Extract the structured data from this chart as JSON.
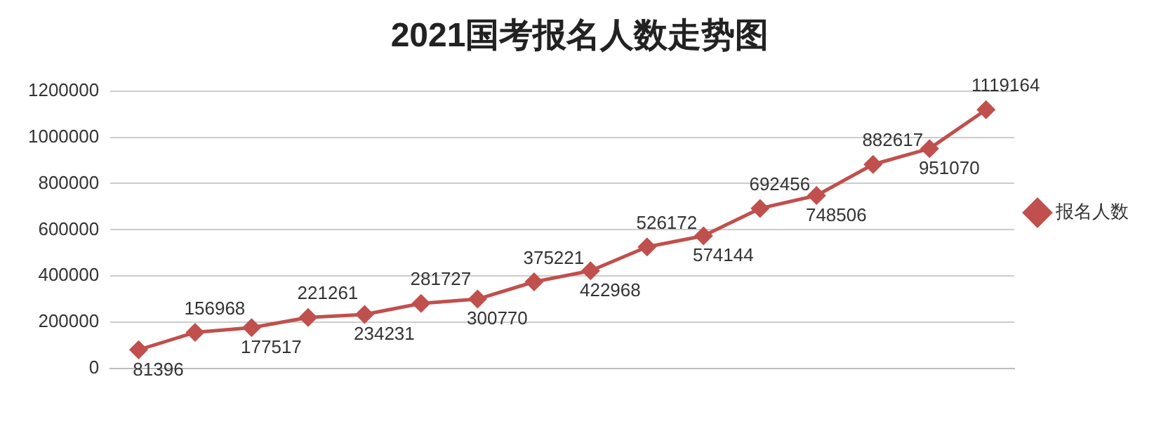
{
  "chart_data": {
    "type": "line",
    "title": "2021国考报名人数走势图",
    "categories": [
      null,
      null,
      null,
      null,
      null,
      null,
      null,
      null,
      null,
      null,
      null,
      null,
      null,
      null,
      null,
      null
    ],
    "series": [
      {
        "name": "报名人数",
        "color": "#c0504d",
        "values": [
          81396,
          156968,
          177517,
          221261,
          234231,
          281727,
          300770,
          375221,
          422968,
          526172,
          574144,
          692456,
          748506,
          882617,
          951070,
          1119164
        ]
      }
    ],
    "ylim": [
      0,
      1200000
    ],
    "yticks": [
      0,
      200000,
      400000,
      600000,
      800000,
      1000000,
      1200000
    ],
    "grid": "y",
    "legend": "right",
    "marker": "diamond",
    "line_style": "solid",
    "data_labels": true
  }
}
